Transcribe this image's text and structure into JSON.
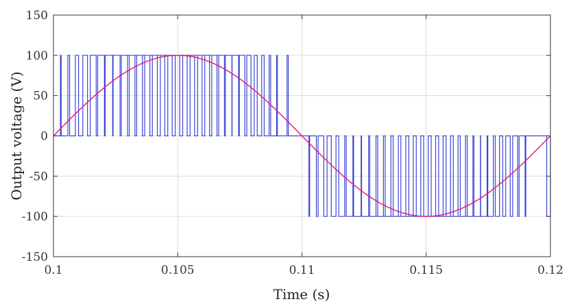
{
  "chart_data": {
    "type": "line",
    "title": "",
    "xlabel": "Time (s)",
    "ylabel": "Output voltage (V)",
    "xlim": [
      0.1,
      0.12
    ],
    "ylim": [
      -150,
      150
    ],
    "xticks": [
      0.1,
      0.105,
      0.11,
      0.115,
      0.12
    ],
    "xtick_labels": [
      "0.1",
      "0.105",
      "0.11",
      "0.115",
      "0.12"
    ],
    "yticks": [
      150,
      100,
      50,
      0,
      -50,
      -100,
      -150
    ],
    "ytick_labels": [
      "150",
      "100",
      "50",
      "0",
      "-50",
      "-100",
      "-150"
    ],
    "grid": true,
    "legend": "none",
    "series": [
      {
        "kind": "pwm",
        "color": "#3a44d6",
        "amplitude": 100,
        "pulses": [
          [
            0.10028,
            0.10031
          ],
          [
            0.10058,
            0.10065
          ],
          [
            0.10088,
            0.10101
          ],
          [
            0.10118,
            0.10137
          ],
          [
            0.10148,
            0.10172
          ],
          [
            0.10178,
            0.10205
          ],
          [
            0.10208,
            0.1024
          ],
          [
            0.10238,
            0.10273
          ],
          [
            0.10268,
            0.10305
          ],
          [
            0.10298,
            0.10335
          ],
          [
            0.10328,
            0.10367
          ],
          [
            0.10358,
            0.10398
          ],
          [
            0.10388,
            0.1043
          ],
          [
            0.10418,
            0.1046
          ],
          [
            0.10448,
            0.1049
          ],
          [
            0.10478,
            0.1052
          ],
          [
            0.10508,
            0.1055
          ],
          [
            0.10538,
            0.1058
          ],
          [
            0.10568,
            0.10609
          ],
          [
            0.10598,
            0.10637
          ],
          [
            0.10628,
            0.10665
          ],
          [
            0.10658,
            0.10692
          ],
          [
            0.10688,
            0.10719
          ],
          [
            0.10718,
            0.10745
          ],
          [
            0.10748,
            0.1077
          ],
          [
            0.10778,
            0.10795
          ],
          [
            0.10808,
            0.1082
          ],
          [
            0.10838,
            0.10848
          ],
          [
            0.10868,
            0.10874
          ],
          [
            0.10898,
            0.10901
          ],
          [
            0.1094,
            0.10945
          ],
          [
            0.11028,
            0.11031
          ],
          [
            0.11058,
            0.11065
          ],
          [
            0.11088,
            0.11101
          ],
          [
            0.11118,
            0.11137
          ],
          [
            0.11148,
            0.11172
          ],
          [
            0.11178,
            0.11205
          ],
          [
            0.11208,
            0.1124
          ],
          [
            0.11238,
            0.11273
          ],
          [
            0.11268,
            0.11305
          ],
          [
            0.11298,
            0.11335
          ],
          [
            0.11328,
            0.11367
          ],
          [
            0.11358,
            0.11398
          ],
          [
            0.11388,
            0.1143
          ],
          [
            0.11418,
            0.1146
          ],
          [
            0.11448,
            0.1149
          ],
          [
            0.11478,
            0.1152
          ],
          [
            0.11508,
            0.1155
          ],
          [
            0.11538,
            0.1158
          ],
          [
            0.11568,
            0.11609
          ],
          [
            0.11598,
            0.11637
          ],
          [
            0.11628,
            0.11665
          ],
          [
            0.11658,
            0.11692
          ],
          [
            0.11688,
            0.11719
          ],
          [
            0.11718,
            0.11745
          ],
          [
            0.11748,
            0.1177
          ],
          [
            0.11778,
            0.11795
          ],
          [
            0.11808,
            0.1182
          ],
          [
            0.11838,
            0.11848
          ],
          [
            0.11868,
            0.11874
          ],
          [
            0.11898,
            0.11901
          ],
          [
            0.11985,
            0.12
          ]
        ]
      },
      {
        "kind": "sine",
        "color": "#e0227a",
        "amplitude": 100,
        "frequency_hz": 50,
        "phase_rad": 0
      }
    ]
  }
}
